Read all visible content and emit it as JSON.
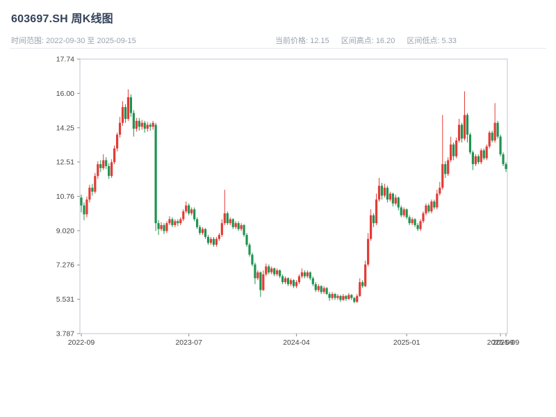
{
  "header": {
    "title": "603697.SH 周K线图",
    "time_range": "时间范围: 2022-09-30 至 2025-09-15",
    "stats": {
      "current": "当前价格: 12.15",
      "high": "区间高点: 16.20",
      "low": "区间低点: 5.33"
    }
  },
  "chart_data": {
    "type": "candlestick",
    "title": "603697.SH 周K线图",
    "period": "weekly",
    "date_start": "2022-09-30",
    "date_end": "2025-09-15",
    "current_price": 12.15,
    "range_high": 16.2,
    "range_low": 5.33,
    "up_color": "#e23b36",
    "down_color": "#1f9350",
    "axis_color": "#444444",
    "border_color": "#c2c6cd",
    "y_range": [
      3.787,
      17.74
    ],
    "y_ticks": [
      "17.74",
      "16.00",
      "14.25",
      "12.51",
      "10.76",
      "9.020",
      "7.276",
      "5.531",
      "3.787"
    ],
    "x_ticks": [
      {
        "index": 0,
        "label": "2022-09"
      },
      {
        "index": 39,
        "label": "2023-07"
      },
      {
        "index": 78,
        "label": "2024-04"
      },
      {
        "index": 118,
        "label": "2025-01"
      },
      {
        "index": 152,
        "label": "2025-09"
      },
      {
        "index": 154,
        "label": "2025-09"
      }
    ],
    "ohlc_format": [
      "open",
      "high",
      "low",
      "close"
    ],
    "candles": [
      [
        10.7,
        10.85,
        9.95,
        10.3
      ],
      [
        10.3,
        10.45,
        9.55,
        9.85
      ],
      [
        9.85,
        10.75,
        9.7,
        10.6
      ],
      [
        10.6,
        11.35,
        10.45,
        11.2
      ],
      [
        11.2,
        11.4,
        10.8,
        11.0
      ],
      [
        11.0,
        11.95,
        10.9,
        11.8
      ],
      [
        11.8,
        12.55,
        11.65,
        12.4
      ],
      [
        12.4,
        12.6,
        12.0,
        12.2
      ],
      [
        12.2,
        12.9,
        12.1,
        12.6
      ],
      [
        12.6,
        12.75,
        12.15,
        12.3
      ],
      [
        12.3,
        12.45,
        11.65,
        11.8
      ],
      [
        11.8,
        12.65,
        11.7,
        12.5
      ],
      [
        12.5,
        13.35,
        12.4,
        13.2
      ],
      [
        13.2,
        14.0,
        13.05,
        13.9
      ],
      [
        13.9,
        14.8,
        13.75,
        14.5
      ],
      [
        14.5,
        15.6,
        14.35,
        15.3
      ],
      [
        15.3,
        15.45,
        14.5,
        14.7
      ],
      [
        14.7,
        16.2,
        14.6,
        15.8
      ],
      [
        15.8,
        15.95,
        14.8,
        15.0
      ],
      [
        15.0,
        15.15,
        13.8,
        14.2
      ],
      [
        14.2,
        14.75,
        14.05,
        14.6
      ],
      [
        14.6,
        14.75,
        14.1,
        14.3
      ],
      [
        14.3,
        14.65,
        14.15,
        14.5
      ],
      [
        14.5,
        14.6,
        14.0,
        14.2
      ],
      [
        14.2,
        14.55,
        14.05,
        14.4
      ],
      [
        14.4,
        14.5,
        14.1,
        14.3
      ],
      [
        14.3,
        14.6,
        14.15,
        14.5
      ],
      [
        14.4,
        14.5,
        9.0,
        9.4
      ],
      [
        9.4,
        9.55,
        8.8,
        9.1
      ],
      [
        9.1,
        9.45,
        9.0,
        9.3
      ],
      [
        9.3,
        9.4,
        8.85,
        9.0
      ],
      [
        9.0,
        9.5,
        8.9,
        9.4
      ],
      [
        9.4,
        9.75,
        9.3,
        9.6
      ],
      [
        9.6,
        9.7,
        9.2,
        9.3
      ],
      [
        9.3,
        9.6,
        9.2,
        9.5
      ],
      [
        9.5,
        9.6,
        9.25,
        9.4
      ],
      [
        9.4,
        9.7,
        9.3,
        9.6
      ],
      [
        9.6,
        10.1,
        9.5,
        10.0
      ],
      [
        10.0,
        10.5,
        9.9,
        10.3
      ],
      [
        10.3,
        10.4,
        9.8,
        9.9
      ],
      [
        9.9,
        10.2,
        9.8,
        10.1
      ],
      [
        10.1,
        10.2,
        9.5,
        9.6
      ],
      [
        9.6,
        9.7,
        9.1,
        9.2
      ],
      [
        9.2,
        9.3,
        8.8,
        8.9
      ],
      [
        8.9,
        9.2,
        8.8,
        9.1
      ],
      [
        9.1,
        9.15,
        8.6,
        8.7
      ],
      [
        8.7,
        8.8,
        8.3,
        8.4
      ],
      [
        8.4,
        8.7,
        8.3,
        8.6
      ],
      [
        8.6,
        8.7,
        8.2,
        8.3
      ],
      [
        8.3,
        8.7,
        8.2,
        8.6
      ],
      [
        8.6,
        8.9,
        8.5,
        8.8
      ],
      [
        8.8,
        9.6,
        8.7,
        9.4
      ],
      [
        9.4,
        11.1,
        9.3,
        9.9
      ],
      [
        9.9,
        10.0,
        9.3,
        9.4
      ],
      [
        9.4,
        9.7,
        9.3,
        9.6
      ],
      [
        9.6,
        9.65,
        9.1,
        9.2
      ],
      [
        9.2,
        9.5,
        9.1,
        9.4
      ],
      [
        9.4,
        9.5,
        9.0,
        9.1
      ],
      [
        9.1,
        9.4,
        9.0,
        9.3
      ],
      [
        9.3,
        9.35,
        8.7,
        8.8
      ],
      [
        8.8,
        8.9,
        8.2,
        8.3
      ],
      [
        8.3,
        8.4,
        7.7,
        7.8
      ],
      [
        7.8,
        7.9,
        7.2,
        7.3
      ],
      [
        7.3,
        7.4,
        6.3,
        6.6
      ],
      [
        6.6,
        7.0,
        6.5,
        6.9
      ],
      [
        6.9,
        6.95,
        5.65,
        6.0
      ],
      [
        6.0,
        7.0,
        5.95,
        6.8
      ],
      [
        6.8,
        7.35,
        6.7,
        7.2
      ],
      [
        7.2,
        7.3,
        6.8,
        6.9
      ],
      [
        6.9,
        7.2,
        6.8,
        7.1
      ],
      [
        7.1,
        7.15,
        6.7,
        6.8
      ],
      [
        6.8,
        7.1,
        6.7,
        7.0
      ],
      [
        7.0,
        7.05,
        6.6,
        6.7
      ],
      [
        6.7,
        6.8,
        6.3,
        6.4
      ],
      [
        6.4,
        6.7,
        6.3,
        6.6
      ],
      [
        6.6,
        6.65,
        6.2,
        6.3
      ],
      [
        6.3,
        6.6,
        6.2,
        6.5
      ],
      [
        6.5,
        6.55,
        6.1,
        6.2
      ],
      [
        6.2,
        6.5,
        6.1,
        6.4
      ],
      [
        6.4,
        6.8,
        6.3,
        6.7
      ],
      [
        6.7,
        7.1,
        6.6,
        6.9
      ],
      [
        6.9,
        7.0,
        6.6,
        6.7
      ],
      [
        6.7,
        7.0,
        6.6,
        6.9
      ],
      [
        6.9,
        6.95,
        6.5,
        6.6
      ],
      [
        6.6,
        6.7,
        6.2,
        6.3
      ],
      [
        6.3,
        6.4,
        5.9,
        6.0
      ],
      [
        6.0,
        6.3,
        5.9,
        6.2
      ],
      [
        6.2,
        6.25,
        5.8,
        5.9
      ],
      [
        5.9,
        6.2,
        5.8,
        6.1
      ],
      [
        6.1,
        6.15,
        5.75,
        5.8
      ],
      [
        5.8,
        5.9,
        5.45,
        5.6
      ],
      [
        5.6,
        5.9,
        5.5,
        5.8
      ],
      [
        5.8,
        5.85,
        5.5,
        5.6
      ],
      [
        5.6,
        5.8,
        5.5,
        5.7
      ],
      [
        5.7,
        5.75,
        5.4,
        5.5
      ],
      [
        5.5,
        5.8,
        5.45,
        5.7
      ],
      [
        5.7,
        5.75,
        5.45,
        5.55
      ],
      [
        5.55,
        5.85,
        5.5,
        5.75
      ],
      [
        5.75,
        5.8,
        5.5,
        5.6
      ],
      [
        5.6,
        5.65,
        5.33,
        5.4
      ],
      [
        5.4,
        5.8,
        5.35,
        5.7
      ],
      [
        5.7,
        6.6,
        5.65,
        6.4
      ],
      [
        6.4,
        6.5,
        6.1,
        6.2
      ],
      [
        6.2,
        7.5,
        6.15,
        7.3
      ],
      [
        7.3,
        8.9,
        7.2,
        8.6
      ],
      [
        8.6,
        10.1,
        8.5,
        9.8
      ],
      [
        9.8,
        9.9,
        9.2,
        9.4
      ],
      [
        9.4,
        10.9,
        9.3,
        10.6
      ],
      [
        10.6,
        11.7,
        10.5,
        11.3
      ],
      [
        11.3,
        11.45,
        10.6,
        10.8
      ],
      [
        10.8,
        11.4,
        10.7,
        11.2
      ],
      [
        11.2,
        11.3,
        10.45,
        10.6
      ],
      [
        10.6,
        11.0,
        10.5,
        10.9
      ],
      [
        10.9,
        10.95,
        10.25,
        10.4
      ],
      [
        10.4,
        10.85,
        10.3,
        10.7
      ],
      [
        10.7,
        10.75,
        10.05,
        10.2
      ],
      [
        10.2,
        10.3,
        9.7,
        9.8
      ],
      [
        9.8,
        10.2,
        9.7,
        10.1
      ],
      [
        10.1,
        10.15,
        9.6,
        9.7
      ],
      [
        9.7,
        9.8,
        9.3,
        9.4
      ],
      [
        9.4,
        9.7,
        9.3,
        9.6
      ],
      [
        9.6,
        9.65,
        9.2,
        9.3
      ],
      [
        9.3,
        9.4,
        9.0,
        9.1
      ],
      [
        9.1,
        9.6,
        9.0,
        9.5
      ],
      [
        9.5,
        10.0,
        9.4,
        9.9
      ],
      [
        9.9,
        10.4,
        9.8,
        10.3
      ],
      [
        10.3,
        10.4,
        9.9,
        10.0
      ],
      [
        10.0,
        10.6,
        9.9,
        10.5
      ],
      [
        10.5,
        10.6,
        10.1,
        10.2
      ],
      [
        10.2,
        11.1,
        10.1,
        10.9
      ],
      [
        10.9,
        11.5,
        10.8,
        11.2
      ],
      [
        11.2,
        14.9,
        11.1,
        12.4
      ],
      [
        12.4,
        12.55,
        11.7,
        11.9
      ],
      [
        11.9,
        12.75,
        11.8,
        12.6
      ],
      [
        12.6,
        13.8,
        12.5,
        13.4
      ],
      [
        13.4,
        13.5,
        12.6,
        12.8
      ],
      [
        12.8,
        13.75,
        12.7,
        13.6
      ],
      [
        13.6,
        14.7,
        13.5,
        14.4
      ],
      [
        14.4,
        14.5,
        13.5,
        13.7
      ],
      [
        13.7,
        16.1,
        13.6,
        14.9
      ],
      [
        14.9,
        15.0,
        13.5,
        13.9
      ],
      [
        13.9,
        14.0,
        12.9,
        13.0
      ],
      [
        13.0,
        13.1,
        12.1,
        12.4
      ],
      [
        12.4,
        12.9,
        12.3,
        12.8
      ],
      [
        12.8,
        12.9,
        12.4,
        12.5
      ],
      [
        12.5,
        13.2,
        12.4,
        13.1
      ],
      [
        13.1,
        13.2,
        12.6,
        12.7
      ],
      [
        12.7,
        13.4,
        12.6,
        13.3
      ],
      [
        13.3,
        14.1,
        13.2,
        14.0
      ],
      [
        14.0,
        14.1,
        13.5,
        13.6
      ],
      [
        13.6,
        15.5,
        13.5,
        14.5
      ],
      [
        14.5,
        14.6,
        13.7,
        13.8
      ],
      [
        13.8,
        13.9,
        12.8,
        12.9
      ],
      [
        12.9,
        13.0,
        12.3,
        12.4
      ],
      [
        12.4,
        12.5,
        12.0,
        12.15
      ]
    ]
  }
}
